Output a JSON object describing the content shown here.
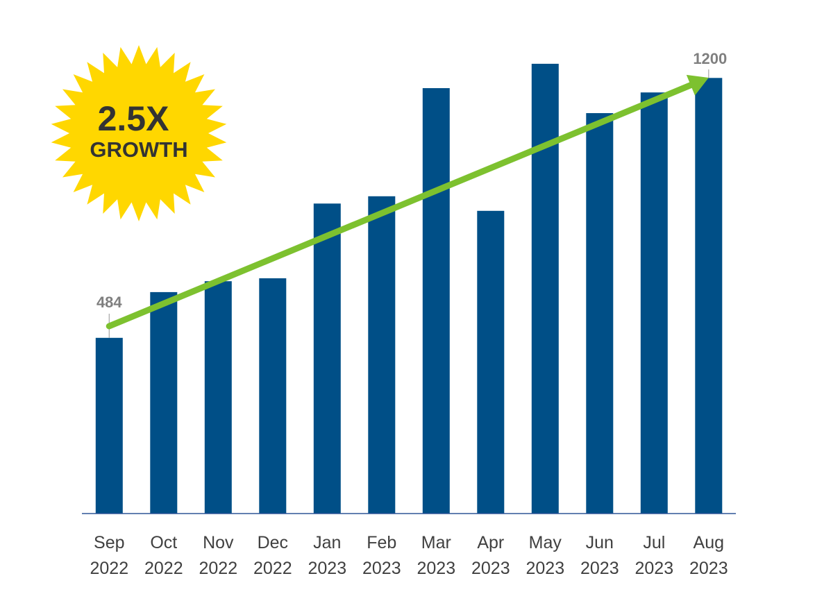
{
  "chart_data": {
    "type": "bar",
    "categories": [
      "Sep 2022",
      "Oct 2022",
      "Nov 2022",
      "Dec 2022",
      "Jan 2023",
      "Feb 2023",
      "Mar 2023",
      "Apr 2023",
      "May 2023",
      "Jun 2023",
      "Jul 2023",
      "Aug 2023"
    ],
    "category_lines": [
      [
        "Sep",
        "2022"
      ],
      [
        "Oct",
        "2022"
      ],
      [
        "Nov",
        "2022"
      ],
      [
        "Dec",
        "2022"
      ],
      [
        "Jan",
        "2023"
      ],
      [
        "Feb",
        "2023"
      ],
      [
        "Mar",
        "2023"
      ],
      [
        "Apr",
        "2023"
      ],
      [
        "May",
        "2023"
      ],
      [
        "Jun",
        "2023"
      ],
      [
        "Jul",
        "2023"
      ],
      [
        "Aug",
        "2023"
      ]
    ],
    "values": [
      484,
      610,
      640,
      648,
      854,
      874,
      1172,
      834,
      1239,
      1103,
      1160,
      1200
    ],
    "ylim": [
      0,
      1300
    ],
    "grid": false,
    "legend": "none",
    "title": "",
    "xlabel": "",
    "ylabel": "",
    "annotations": {
      "start_label": "484",
      "end_label": "1200",
      "trend_arrow": "from first bar to last bar"
    }
  },
  "badge": {
    "line1": "2.5X",
    "line2": "GROWTH",
    "fill": "#FFD700"
  },
  "colors": {
    "bar": "#004F87",
    "trend": "#7DC12F",
    "axis": "#2F5597",
    "labels": "#404040",
    "end_labels": "#7F7F7F"
  }
}
